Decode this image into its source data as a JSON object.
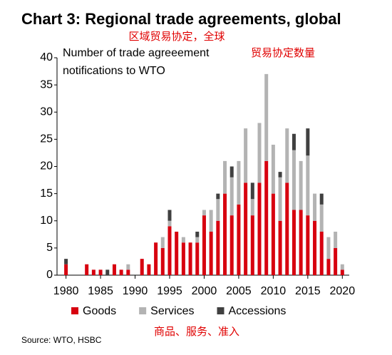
{
  "chart_data": {
    "type": "bar",
    "stacked": true,
    "title": "Chart 3: Regional trade agreements, global",
    "subtitle": "区域贸易协定，全球",
    "annotation_lines": [
      "Number of trade agreeement",
      "notifications to WTO"
    ],
    "annotation_cn": "贸易协定数量",
    "legend_cn": "商品、服务、准入",
    "source": "Source: WTO, HSBC",
    "x": [
      1980,
      1981,
      1982,
      1983,
      1984,
      1985,
      1986,
      1987,
      1988,
      1989,
      1990,
      1991,
      1992,
      1993,
      1994,
      1995,
      1996,
      1997,
      1998,
      1999,
      2000,
      2001,
      2002,
      2003,
      2004,
      2005,
      2006,
      2007,
      2008,
      2009,
      2010,
      2011,
      2012,
      2013,
      2014,
      2015,
      2016,
      2017,
      2018,
      2019,
      2020
    ],
    "series": [
      {
        "name": "Goods",
        "color": "#d7000f",
        "values": [
          2,
          0,
          0,
          2,
          1,
          1,
          0,
          2,
          1,
          1,
          0,
          3,
          2,
          6,
          5,
          9,
          8,
          6,
          6,
          6,
          11,
          8,
          10,
          15,
          11,
          13,
          17,
          11,
          17,
          21,
          15,
          10,
          17,
          12,
          12,
          11,
          10,
          8,
          3,
          5,
          1
        ]
      },
      {
        "name": "Services",
        "color": "#b3b3b3",
        "values": [
          0,
          0,
          0,
          0,
          0,
          0,
          0,
          0,
          0,
          1,
          0,
          0,
          0,
          0,
          2,
          1,
          0,
          1,
          0,
          1,
          1,
          4,
          4,
          6,
          7,
          8,
          10,
          3,
          11,
          16,
          9,
          8,
          10,
          11,
          9,
          11,
          5,
          5,
          4,
          3,
          1
        ]
      },
      {
        "name": "Accessions",
        "color": "#404040",
        "values": [
          1,
          0,
          0,
          0,
          0,
          0,
          1,
          0,
          0,
          0,
          0,
          0,
          0,
          0,
          0,
          2,
          0,
          0,
          0,
          1,
          0,
          0,
          1,
          0,
          2,
          0,
          0,
          3,
          0,
          0,
          0,
          1,
          0,
          3,
          0,
          5,
          0,
          2,
          0,
          0,
          0
        ]
      }
    ],
    "xlim": [
      1978.7,
      2021
    ],
    "xticks": [
      1980,
      1985,
      1990,
      1995,
      2000,
      2005,
      2010,
      2015,
      2020
    ],
    "ylim": [
      0,
      40
    ],
    "yticks": [
      0,
      5,
      10,
      15,
      20,
      25,
      30,
      35,
      40
    ],
    "grid": false
  }
}
